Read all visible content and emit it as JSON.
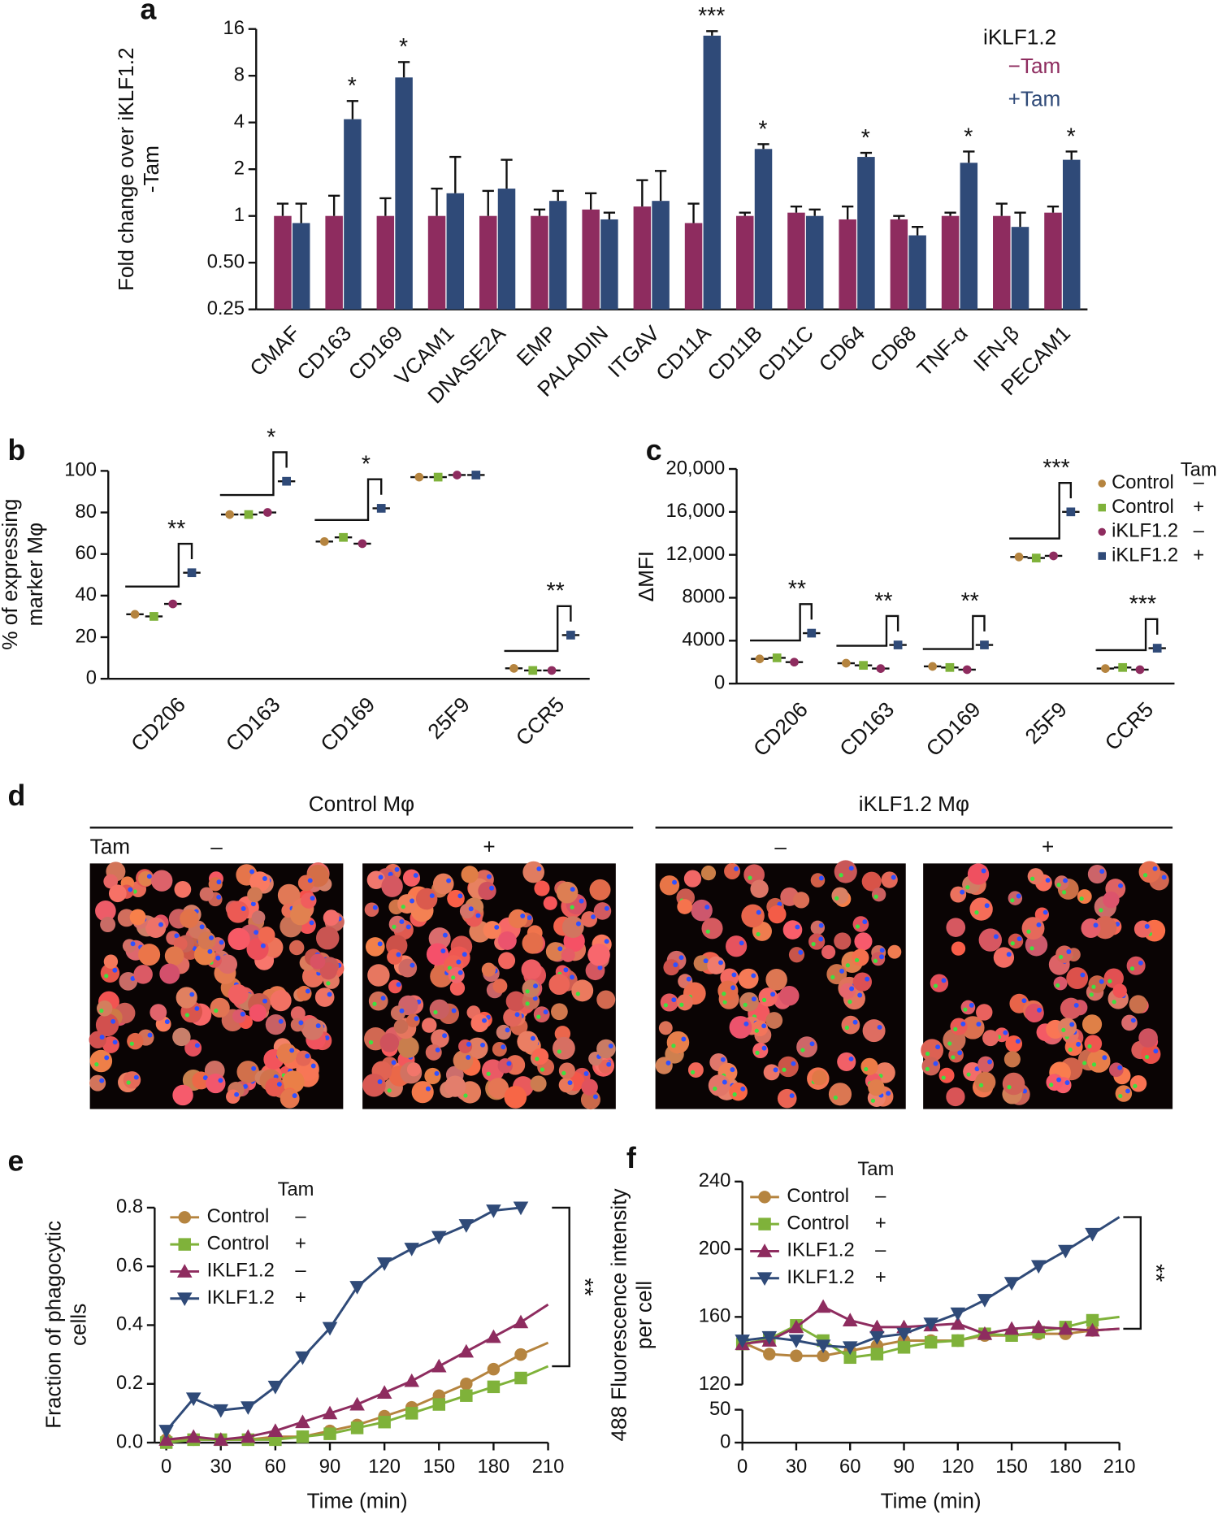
{
  "chart_data": [
    {
      "type": "bar",
      "panel": "a",
      "log_scale": true,
      "ylabel": [
        "Fold change over iKLF1.2",
        "-Tam"
      ],
      "legend_title": "iKLF1.2",
      "categories": [
        "CMAF",
        "CD163",
        "CD169",
        "VCAM1",
        "DNASE2A",
        "EMP",
        "PALADIN",
        "ITGAV",
        "CD11A",
        "CD11B",
        "CD11C",
        "CD64",
        "CD68",
        "TNF-α",
        "IFN-β",
        "PECAM1"
      ],
      "series": [
        {
          "name": "−Tam",
          "color": "#8e2c5f",
          "values": [
            1.0,
            1.0,
            1.0,
            1.0,
            1.0,
            1.0,
            1.1,
            1.15,
            0.9,
            1.0,
            1.05,
            0.95,
            0.95,
            1.0,
            1.0,
            1.05
          ],
          "errors": [
            0.2,
            0.35,
            0.3,
            0.5,
            0.45,
            0.1,
            0.3,
            0.55,
            0.3,
            0.05,
            0.1,
            0.2,
            0.05,
            0.05,
            0.2,
            0.1
          ]
        },
        {
          "name": "+Tam",
          "color": "#2f4a78",
          "values": [
            0.9,
            4.2,
            7.8,
            1.4,
            1.5,
            1.25,
            0.95,
            1.25,
            14.5,
            2.7,
            1.0,
            2.4,
            0.75,
            2.2,
            0.85,
            2.3
          ],
          "errors": [
            0.3,
            1.3,
            2.0,
            1.0,
            0.8,
            0.2,
            0.1,
            0.7,
            1.0,
            0.2,
            0.1,
            0.15,
            0.1,
            0.4,
            0.2,
            0.3
          ]
        }
      ],
      "significance": [
        null,
        "*",
        "*",
        null,
        null,
        null,
        null,
        null,
        "***",
        "*",
        null,
        "*",
        null,
        "*",
        null,
        "*"
      ],
      "ylim": [
        0.25,
        16
      ],
      "yticks": [
        16,
        8,
        4,
        2,
        1,
        {
          "value": 0.5,
          "label": "0.50"
        },
        0.25
      ]
    },
    {
      "type": "dot",
      "panel": "b",
      "ylabel": [
        "% of expressing",
        "marker Mφ"
      ],
      "categories": [
        "CD206",
        "CD163",
        "CD169",
        "25F9",
        "CCR5"
      ],
      "series": [
        {
          "color": "#b5843f",
          "marker": "circle",
          "values": [
            31,
            79,
            66,
            97,
            5
          ]
        },
        {
          "color": "#7fb23a",
          "marker": "square",
          "values": [
            30,
            79,
            68,
            97,
            4
          ]
        },
        {
          "color": "#8e2c5f",
          "marker": "circle",
          "values": [
            36,
            80,
            65,
            98,
            4
          ]
        },
        {
          "color": "#2f4a78",
          "marker": "square",
          "values": [
            51,
            95,
            82,
            98,
            21
          ]
        }
      ],
      "significance": [
        "**",
        "*",
        "*",
        null,
        "**"
      ],
      "ylim": [
        0,
        100
      ],
      "yticks": [
        0,
        20,
        40,
        60,
        80,
        100
      ]
    },
    {
      "type": "dot",
      "panel": "c",
      "ylabel": [
        "ΔMFI"
      ],
      "legend_title": "Tam",
      "categories": [
        "CD206",
        "CD163",
        "CD169",
        "25F9",
        "CCR5"
      ],
      "series": [
        {
          "name": "Control",
          "tam": "–",
          "color": "#b5843f",
          "marker": "circle",
          "values": [
            2300,
            1900,
            1600,
            11800,
            1400
          ]
        },
        {
          "name": "Control",
          "tam": "+",
          "color": "#7fb23a",
          "marker": "square",
          "values": [
            2400,
            1700,
            1500,
            11700,
            1500
          ]
        },
        {
          "name": "iKLF1.2",
          "tam": "–",
          "color": "#8e2c5f",
          "marker": "circle",
          "values": [
            2000,
            1400,
            1300,
            11900,
            1300
          ]
        },
        {
          "name": "iKLF1.2",
          "tam": "+",
          "color": "#2f4a78",
          "marker": "square",
          "values": [
            4700,
            3600,
            3600,
            16000,
            3300
          ]
        }
      ],
      "significance": [
        "**",
        "**",
        "**",
        "***",
        "***"
      ],
      "ylim": [
        0,
        20000
      ],
      "yticks": [
        0,
        4000,
        8000,
        {
          "value": 12000,
          "label": "12,000"
        },
        {
          "value": 16000,
          "label": "16,000"
        },
        {
          "value": 20000,
          "label": "20,000"
        }
      ]
    },
    {
      "type": "image",
      "panel": "d",
      "groups": [
        "Control Mφ",
        "iKLF1.2 Mφ"
      ],
      "row_label": "Tam",
      "columns": [
        "–",
        "+",
        "–",
        "+"
      ]
    },
    {
      "type": "line",
      "panel": "e",
      "ylabel": [
        "Fraction of phagocytic",
        "cells"
      ],
      "xlabel": "Time (min)",
      "legend_title": "Tam",
      "significance": "**",
      "x": [
        0,
        15,
        30,
        45,
        60,
        75,
        90,
        105,
        120,
        135,
        150,
        165,
        180,
        195,
        210
      ],
      "series": [
        {
          "name": "Control",
          "tam": "–",
          "color": "#b5843f",
          "marker": "circle",
          "values": [
            0.01,
            0.01,
            0.01,
            0.01,
            0.02,
            0.02,
            0.04,
            0.06,
            0.09,
            0.12,
            0.16,
            0.2,
            0.25,
            0.3,
            0.34
          ]
        },
        {
          "name": "Control",
          "tam": "+",
          "color": "#7fb23a",
          "marker": "square",
          "values": [
            0.0,
            0.01,
            0.01,
            0.01,
            0.01,
            0.02,
            0.03,
            0.05,
            0.07,
            0.1,
            0.13,
            0.16,
            0.19,
            0.22,
            0.26
          ]
        },
        {
          "name": "IKLF1.2",
          "tam": "–",
          "color": "#8e2c5f",
          "marker": "triangle-up",
          "values": [
            0.01,
            0.02,
            0.01,
            0.02,
            0.04,
            0.07,
            0.1,
            0.13,
            0.17,
            0.21,
            0.26,
            0.31,
            0.36,
            0.41,
            0.47
          ]
        },
        {
          "name": "IKLF1.2",
          "tam": "+",
          "color": "#2f4a78",
          "marker": "triangle-down",
          "values": [
            0.04,
            0.15,
            0.11,
            0.12,
            0.19,
            0.29,
            0.39,
            0.53,
            0.61,
            0.66,
            0.7,
            0.74,
            0.79,
            0.8,
            null
          ]
        }
      ],
      "xlim": [
        0,
        210
      ],
      "xticks": [
        0,
        30,
        60,
        90,
        120,
        150,
        180,
        210
      ],
      "ylim": [
        0,
        0.8
      ],
      "yticks": [
        {
          "value": 0,
          "label": "0.0"
        },
        0.2,
        0.4,
        0.6,
        0.8
      ]
    },
    {
      "type": "line",
      "panel": "f",
      "ylabel": [
        "488 Fluorescence intensity",
        "per cell"
      ],
      "xlabel": "Time (min)",
      "legend_title": "Tam",
      "significance": "**",
      "x": [
        0,
        15,
        30,
        45,
        60,
        75,
        90,
        105,
        120,
        135,
        150,
        165,
        180,
        195,
        210
      ],
      "series": [
        {
          "name": "Control",
          "tam": "–",
          "color": "#b5843f",
          "marker": "circle",
          "values": [
            145,
            138,
            137,
            137,
            140,
            143,
            146,
            146,
            146,
            149,
            149,
            150,
            150,
            152,
            153
          ]
        },
        {
          "name": "Control",
          "tam": "+",
          "color": "#7fb23a",
          "marker": "square",
          "values": [
            144,
            147,
            155,
            146,
            136,
            138,
            142,
            145,
            146,
            150,
            149,
            151,
            154,
            158,
            160
          ]
        },
        {
          "name": "IKLF1.2",
          "tam": "–",
          "color": "#8e2c5f",
          "marker": "triangle-up",
          "values": [
            144,
            146,
            154,
            166,
            158,
            154,
            154,
            155,
            156,
            150,
            153,
            154,
            153,
            152,
            153
          ]
        },
        {
          "name": "IKLF1.2",
          "tam": "+",
          "color": "#2f4a78",
          "marker": "triangle-down",
          "values": [
            146,
            148,
            146,
            143,
            142,
            148,
            150,
            156,
            162,
            170,
            180,
            190,
            199,
            209,
            219
          ]
        }
      ],
      "xlim": [
        0,
        210
      ],
      "xticks": [
        0,
        30,
        60,
        90,
        120,
        150,
        180,
        210
      ],
      "ylim": [
        120,
        240
      ],
      "yticks": [
        120,
        160,
        200,
        240
      ],
      "ylim_lower": [
        0,
        50
      ],
      "yticks_lower": [
        0,
        50
      ]
    }
  ]
}
